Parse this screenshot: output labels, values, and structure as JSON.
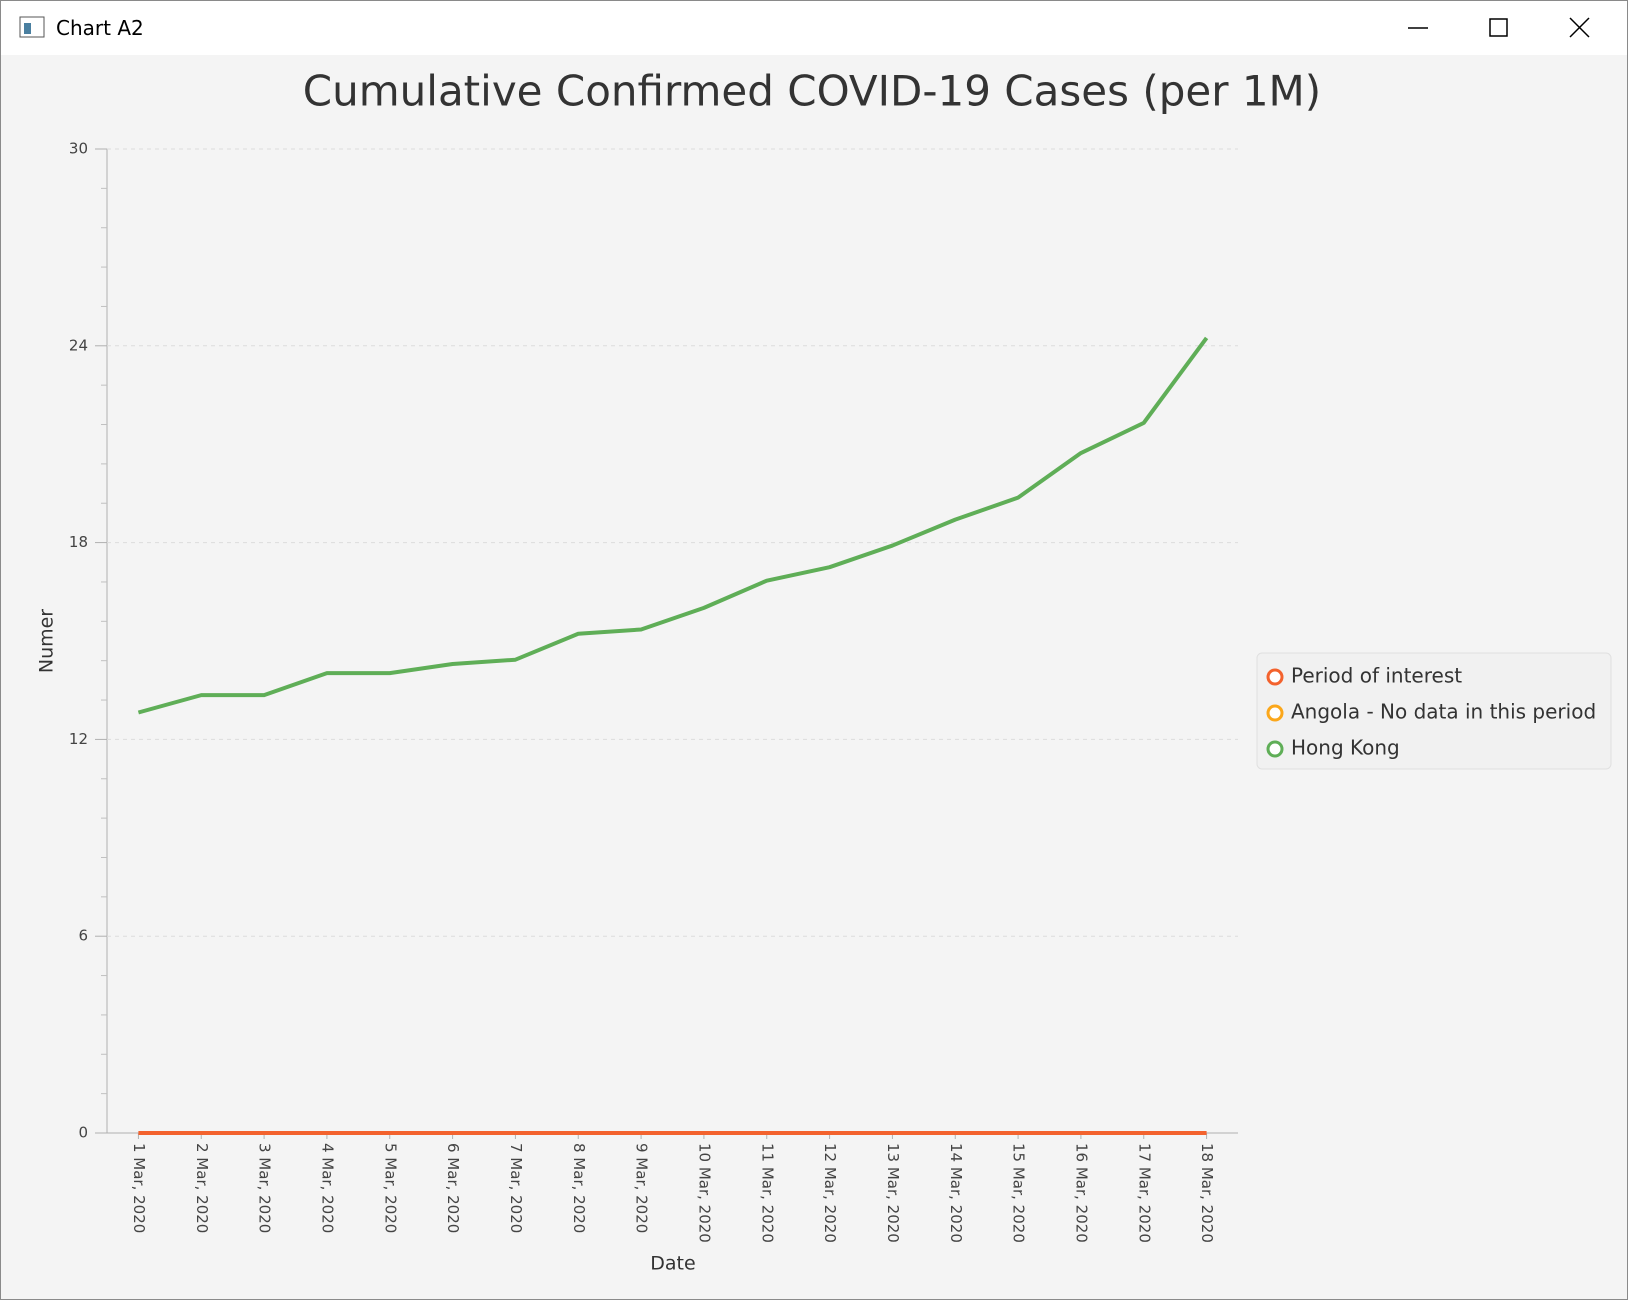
{
  "window": {
    "title": "Chart A2"
  },
  "chart_data": {
    "type": "line",
    "title": "Cumulative Confirmed COVID-19 Cases (per 1M)",
    "x_label": "Date",
    "y_label": "Numer",
    "categories": [
      "1 Mar, 2020",
      "2 Mar, 2020",
      "3 Mar, 2020",
      "4 Mar, 2020",
      "5 Mar, 2020",
      "6 Mar, 2020",
      "7 Mar, 2020",
      "8 Mar, 2020",
      "9 Mar, 2020",
      "10 Mar, 2020",
      "11 Mar, 2020",
      "12 Mar, 2020",
      "13 Mar, 2020",
      "14 Mar, 2020",
      "15 Mar, 2020",
      "16 Mar, 2020",
      "17 Mar, 2020",
      "18 Mar, 2020"
    ],
    "series": [
      {
        "name": "Period of interest",
        "color": "#f3622d",
        "values": [
          0,
          0,
          0,
          0,
          0,
          0,
          0,
          0,
          0,
          0,
          0,
          0,
          0,
          0,
          0,
          0,
          0,
          0
        ]
      },
      {
        "name": "Angola - No data in this period",
        "color": "#fba71b",
        "values": [
          null,
          null,
          null,
          null,
          null,
          null,
          null,
          null,
          null,
          null,
          null,
          null,
          null,
          null,
          null,
          null,
          null,
          null
        ]
      },
      {
        "name": "Hong Kong",
        "color": "#5fae57",
        "values": [
          12.82,
          13.35,
          13.35,
          14.02,
          14.02,
          14.3,
          14.43,
          15.22,
          15.35,
          16.01,
          16.84,
          17.25,
          17.91,
          18.7,
          19.37,
          20.73,
          21.65,
          24.24
        ]
      }
    ],
    "ylim": [
      0,
      30
    ],
    "yticks": [
      0,
      6,
      12,
      18,
      24,
      30
    ],
    "grid": true,
    "legend": "right"
  }
}
